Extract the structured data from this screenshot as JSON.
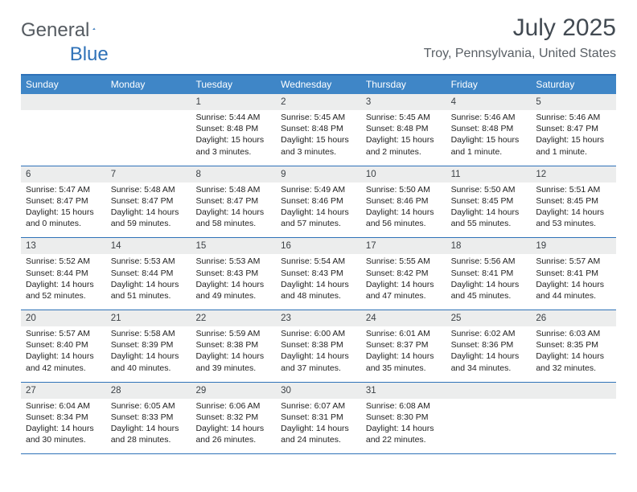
{
  "logo": {
    "textA": "General",
    "textB": "Blue"
  },
  "title": "July 2025",
  "location": "Troy, Pennsylvania, United States",
  "colors": {
    "accent": "#2f72b8",
    "headerBg": "#3f86c7",
    "stripe": "#eceded",
    "logoGray": "#555b61"
  },
  "dow": [
    "Sunday",
    "Monday",
    "Tuesday",
    "Wednesday",
    "Thursday",
    "Friday",
    "Saturday"
  ],
  "weeks": [
    [
      {
        "n": "",
        "sr": "",
        "ss": "",
        "d1": "",
        "d2": ""
      },
      {
        "n": "",
        "sr": "",
        "ss": "",
        "d1": "",
        "d2": ""
      },
      {
        "n": "1",
        "sr": "Sunrise: 5:44 AM",
        "ss": "Sunset: 8:48 PM",
        "d1": "Daylight: 15 hours",
        "d2": "and 3 minutes."
      },
      {
        "n": "2",
        "sr": "Sunrise: 5:45 AM",
        "ss": "Sunset: 8:48 PM",
        "d1": "Daylight: 15 hours",
        "d2": "and 3 minutes."
      },
      {
        "n": "3",
        "sr": "Sunrise: 5:45 AM",
        "ss": "Sunset: 8:48 PM",
        "d1": "Daylight: 15 hours",
        "d2": "and 2 minutes."
      },
      {
        "n": "4",
        "sr": "Sunrise: 5:46 AM",
        "ss": "Sunset: 8:48 PM",
        "d1": "Daylight: 15 hours",
        "d2": "and 1 minute."
      },
      {
        "n": "5",
        "sr": "Sunrise: 5:46 AM",
        "ss": "Sunset: 8:47 PM",
        "d1": "Daylight: 15 hours",
        "d2": "and 1 minute."
      }
    ],
    [
      {
        "n": "6",
        "sr": "Sunrise: 5:47 AM",
        "ss": "Sunset: 8:47 PM",
        "d1": "Daylight: 15 hours",
        "d2": "and 0 minutes."
      },
      {
        "n": "7",
        "sr": "Sunrise: 5:48 AM",
        "ss": "Sunset: 8:47 PM",
        "d1": "Daylight: 14 hours",
        "d2": "and 59 minutes."
      },
      {
        "n": "8",
        "sr": "Sunrise: 5:48 AM",
        "ss": "Sunset: 8:47 PM",
        "d1": "Daylight: 14 hours",
        "d2": "and 58 minutes."
      },
      {
        "n": "9",
        "sr": "Sunrise: 5:49 AM",
        "ss": "Sunset: 8:46 PM",
        "d1": "Daylight: 14 hours",
        "d2": "and 57 minutes."
      },
      {
        "n": "10",
        "sr": "Sunrise: 5:50 AM",
        "ss": "Sunset: 8:46 PM",
        "d1": "Daylight: 14 hours",
        "d2": "and 56 minutes."
      },
      {
        "n": "11",
        "sr": "Sunrise: 5:50 AM",
        "ss": "Sunset: 8:45 PM",
        "d1": "Daylight: 14 hours",
        "d2": "and 55 minutes."
      },
      {
        "n": "12",
        "sr": "Sunrise: 5:51 AM",
        "ss": "Sunset: 8:45 PM",
        "d1": "Daylight: 14 hours",
        "d2": "and 53 minutes."
      }
    ],
    [
      {
        "n": "13",
        "sr": "Sunrise: 5:52 AM",
        "ss": "Sunset: 8:44 PM",
        "d1": "Daylight: 14 hours",
        "d2": "and 52 minutes."
      },
      {
        "n": "14",
        "sr": "Sunrise: 5:53 AM",
        "ss": "Sunset: 8:44 PM",
        "d1": "Daylight: 14 hours",
        "d2": "and 51 minutes."
      },
      {
        "n": "15",
        "sr": "Sunrise: 5:53 AM",
        "ss": "Sunset: 8:43 PM",
        "d1": "Daylight: 14 hours",
        "d2": "and 49 minutes."
      },
      {
        "n": "16",
        "sr": "Sunrise: 5:54 AM",
        "ss": "Sunset: 8:43 PM",
        "d1": "Daylight: 14 hours",
        "d2": "and 48 minutes."
      },
      {
        "n": "17",
        "sr": "Sunrise: 5:55 AM",
        "ss": "Sunset: 8:42 PM",
        "d1": "Daylight: 14 hours",
        "d2": "and 47 minutes."
      },
      {
        "n": "18",
        "sr": "Sunrise: 5:56 AM",
        "ss": "Sunset: 8:41 PM",
        "d1": "Daylight: 14 hours",
        "d2": "and 45 minutes."
      },
      {
        "n": "19",
        "sr": "Sunrise: 5:57 AM",
        "ss": "Sunset: 8:41 PM",
        "d1": "Daylight: 14 hours",
        "d2": "and 44 minutes."
      }
    ],
    [
      {
        "n": "20",
        "sr": "Sunrise: 5:57 AM",
        "ss": "Sunset: 8:40 PM",
        "d1": "Daylight: 14 hours",
        "d2": "and 42 minutes."
      },
      {
        "n": "21",
        "sr": "Sunrise: 5:58 AM",
        "ss": "Sunset: 8:39 PM",
        "d1": "Daylight: 14 hours",
        "d2": "and 40 minutes."
      },
      {
        "n": "22",
        "sr": "Sunrise: 5:59 AM",
        "ss": "Sunset: 8:38 PM",
        "d1": "Daylight: 14 hours",
        "d2": "and 39 minutes."
      },
      {
        "n": "23",
        "sr": "Sunrise: 6:00 AM",
        "ss": "Sunset: 8:38 PM",
        "d1": "Daylight: 14 hours",
        "d2": "and 37 minutes."
      },
      {
        "n": "24",
        "sr": "Sunrise: 6:01 AM",
        "ss": "Sunset: 8:37 PM",
        "d1": "Daylight: 14 hours",
        "d2": "and 35 minutes."
      },
      {
        "n": "25",
        "sr": "Sunrise: 6:02 AM",
        "ss": "Sunset: 8:36 PM",
        "d1": "Daylight: 14 hours",
        "d2": "and 34 minutes."
      },
      {
        "n": "26",
        "sr": "Sunrise: 6:03 AM",
        "ss": "Sunset: 8:35 PM",
        "d1": "Daylight: 14 hours",
        "d2": "and 32 minutes."
      }
    ],
    [
      {
        "n": "27",
        "sr": "Sunrise: 6:04 AM",
        "ss": "Sunset: 8:34 PM",
        "d1": "Daylight: 14 hours",
        "d2": "and 30 minutes."
      },
      {
        "n": "28",
        "sr": "Sunrise: 6:05 AM",
        "ss": "Sunset: 8:33 PM",
        "d1": "Daylight: 14 hours",
        "d2": "and 28 minutes."
      },
      {
        "n": "29",
        "sr": "Sunrise: 6:06 AM",
        "ss": "Sunset: 8:32 PM",
        "d1": "Daylight: 14 hours",
        "d2": "and 26 minutes."
      },
      {
        "n": "30",
        "sr": "Sunrise: 6:07 AM",
        "ss": "Sunset: 8:31 PM",
        "d1": "Daylight: 14 hours",
        "d2": "and 24 minutes."
      },
      {
        "n": "31",
        "sr": "Sunrise: 6:08 AM",
        "ss": "Sunset: 8:30 PM",
        "d1": "Daylight: 14 hours",
        "d2": "and 22 minutes."
      },
      {
        "n": "",
        "sr": "",
        "ss": "",
        "d1": "",
        "d2": ""
      },
      {
        "n": "",
        "sr": "",
        "ss": "",
        "d1": "",
        "d2": ""
      }
    ]
  ]
}
